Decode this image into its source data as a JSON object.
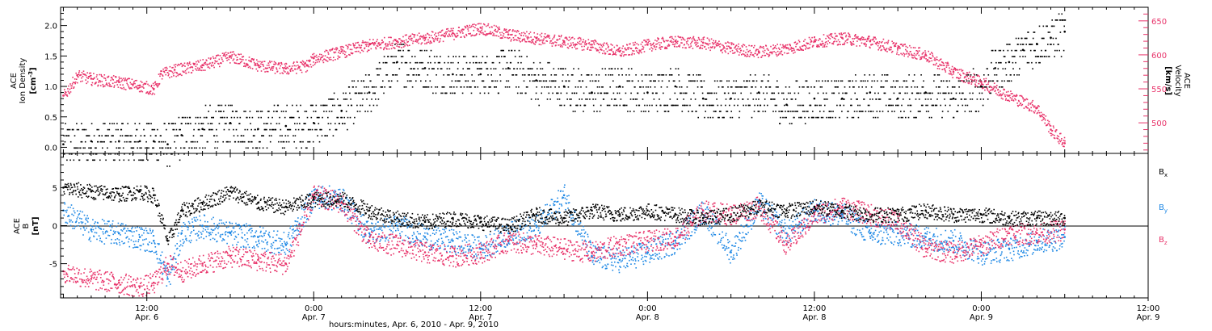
{
  "figure": {
    "xlabel": "hours:minutes, Apr.  6, 2010 - Apr.  9, 2010",
    "x_ticks": [
      {
        "x": 12,
        "time": "12:00",
        "date": "Apr. 6"
      },
      {
        "x": 24,
        "time": "0:00",
        "date": "Apr. 7"
      },
      {
        "x": 36,
        "time": "12:00",
        "date": "Apr. 7"
      },
      {
        "x": 48,
        "time": "0:00",
        "date": "Apr. 8"
      },
      {
        "x": 60,
        "time": "12:00",
        "date": "Apr. 8"
      },
      {
        "x": 72,
        "time": "0:00",
        "date": "Apr. 9"
      },
      {
        "x": 84,
        "time": "12:00",
        "date": "Apr. 9"
      }
    ],
    "x_unit": "hours since Apr. 6, 2010 00:00 UT",
    "xlim": [
      5.8,
      84
    ]
  },
  "chart_data": [
    {
      "type": "scatter",
      "panel": "density-velocity",
      "left_axis": {
        "label_lines": [
          "ACE",
          "Ion Density"
        ],
        "unit_base": "[cm",
        "unit_sup": "-3",
        "unit_close": "]",
        "ylim": [
          -0.1,
          2.3
        ],
        "ticks": [
          "0.0",
          "0.5",
          "1.0",
          "1.5",
          "2.0"
        ],
        "tick_values": [
          0,
          0.5,
          1.0,
          1.5,
          2.0
        ]
      },
      "right_axis": {
        "label_lines": [
          "ACE",
          "Velocity",
          "[km/s]"
        ],
        "ylim": [
          455,
          670
        ],
        "ticks": [
          "500",
          "550",
          "600",
          "650"
        ],
        "tick_values": [
          500,
          550,
          600,
          650
        ],
        "color": "#e8336a"
      },
      "series": [
        {
          "name": "Ion Density",
          "color": "#000000",
          "x": [
            6,
            8,
            10,
            11.5,
            12.5,
            13.5,
            14.5,
            16,
            18,
            20,
            22,
            24,
            26,
            28,
            30,
            32,
            34,
            36,
            38,
            40,
            42,
            44,
            46,
            48,
            50,
            52,
            54,
            56,
            58,
            60,
            62,
            64,
            66,
            68,
            70,
            72,
            73,
            74,
            75,
            76,
            77,
            78
          ],
          "values": [
            0.05,
            0.1,
            0.1,
            0.1,
            0.1,
            0.05,
            0.2,
            0.3,
            0.4,
            0.3,
            0.35,
            0.4,
            0.6,
            0.9,
            1.4,
            1.3,
            1.2,
            1.2,
            1.3,
            1.1,
            1.0,
            0.9,
            1.0,
            0.9,
            1.0,
            0.8,
            0.8,
            0.9,
            0.7,
            0.8,
            0.8,
            0.9,
            0.8,
            0.9,
            0.8,
            1.0,
            1.3,
            1.4,
            1.6,
            1.7,
            1.8,
            1.9
          ]
        },
        {
          "name": "Velocity",
          "color": "#e8336a",
          "x": [
            6,
            7,
            8,
            10,
            11.5,
            12.5,
            13,
            14,
            16,
            18,
            20,
            22,
            23.5,
            24,
            26,
            28,
            30,
            32,
            34,
            36,
            38,
            40,
            42,
            44,
            46,
            48,
            50,
            52,
            54,
            56,
            58,
            60,
            62,
            64,
            66,
            68,
            70,
            72,
            74,
            76,
            77,
            78
          ],
          "values": [
            540,
            570,
            565,
            560,
            555,
            550,
            572,
            578,
            585,
            598,
            585,
            580,
            585,
            595,
            605,
            615,
            620,
            625,
            632,
            640,
            630,
            625,
            620,
            615,
            605,
            615,
            620,
            618,
            610,
            605,
            610,
            620,
            625,
            620,
            610,
            600,
            575,
            560,
            540,
            522,
            490,
            470
          ]
        }
      ]
    },
    {
      "type": "scatter",
      "panel": "imf-components",
      "left_axis": {
        "label_lines": [
          "ACE",
          "B"
        ],
        "unit": "[nT]",
        "ylim": [
          -9.5,
          9.5
        ],
        "ticks": [
          "-5",
          "0",
          "5"
        ],
        "tick_values": [
          -5,
          0,
          5
        ]
      },
      "legend": [
        {
          "base": "B",
          "sub": "x",
          "color": "#000000"
        },
        {
          "base": "B",
          "sub": "y",
          "color": "#1e88e5"
        },
        {
          "base": "B",
          "sub": "z",
          "color": "#e8336a"
        }
      ],
      "series": [
        {
          "name": "Bx",
          "color": "#000000",
          "x": [
            6,
            8,
            10,
            11.5,
            12.5,
            13.5,
            14.5,
            16,
            18,
            20,
            22,
            24,
            26,
            28,
            30,
            32,
            34,
            36,
            38,
            40,
            42,
            44,
            46,
            48,
            50,
            52,
            54,
            56,
            58,
            60,
            62,
            64,
            66,
            68,
            70,
            72,
            74,
            76,
            78
          ],
          "values": [
            5,
            4.5,
            4.2,
            4.5,
            4.0,
            -2.0,
            2.0,
            3.0,
            4.5,
            3.0,
            2.5,
            3.5,
            3.5,
            2.0,
            1.0,
            0.5,
            1.0,
            0.5,
            0,
            1.5,
            1.0,
            2.0,
            1.5,
            2.0,
            1.5,
            1.0,
            1.5,
            2.5,
            2.0,
            2.5,
            2.0,
            1.5,
            1.5,
            2.0,
            1.5,
            1.5,
            1.0,
            1.0,
            1.0
          ]
        },
        {
          "name": "By",
          "color": "#1e88e5",
          "x": [
            6,
            8,
            10,
            11.5,
            12.5,
            13.5,
            14.5,
            16,
            18,
            20,
            22,
            24,
            26,
            28,
            30,
            32,
            34,
            36,
            38,
            40,
            42,
            44,
            46,
            48,
            50,
            52,
            54,
            56,
            58,
            60,
            62,
            64,
            66,
            68,
            70,
            72,
            74,
            76,
            78
          ],
          "values": [
            2.0,
            -0.5,
            -1.0,
            -1.5,
            -2.0,
            -7.0,
            -1.0,
            0,
            -1.0,
            -1.5,
            -2.5,
            4.0,
            3.5,
            -1.0,
            0,
            -1.5,
            -2.0,
            -3.0,
            -1.0,
            0,
            4.0,
            -4.0,
            -4.5,
            -3.5,
            -2.0,
            2.0,
            -3.5,
            3.0,
            -1.0,
            2.0,
            1.5,
            -1.0,
            -1.0,
            -1.5,
            -2.0,
            -3.5,
            -3.0,
            -2.0,
            -1.5
          ]
        },
        {
          "name": "Bz",
          "color": "#e8336a",
          "x": [
            6,
            8,
            10,
            11.5,
            12.5,
            13.5,
            14.5,
            16,
            18,
            20,
            22,
            24,
            26,
            28,
            30,
            32,
            34,
            36,
            38,
            40,
            42,
            44,
            46,
            48,
            50,
            52,
            54,
            56,
            58,
            60,
            62,
            64,
            66,
            68,
            70,
            72,
            74,
            76,
            78
          ],
          "values": [
            -6.0,
            -7.0,
            -7.5,
            -8.0,
            -7.5,
            -5.0,
            -6.0,
            -5.0,
            -4.0,
            -4.5,
            -5.0,
            4.0,
            3.0,
            -2.0,
            -2.5,
            -3.5,
            -4.0,
            -3.5,
            -2.0,
            -2.5,
            -3.0,
            -3.5,
            -2.5,
            -2.0,
            -1.5,
            2.0,
            1.5,
            2.5,
            -2.5,
            1.5,
            2.5,
            1.5,
            0.5,
            -3.0,
            -3.5,
            -2.5,
            -1.0,
            -1.0,
            -0.5
          ]
        }
      ]
    }
  ]
}
